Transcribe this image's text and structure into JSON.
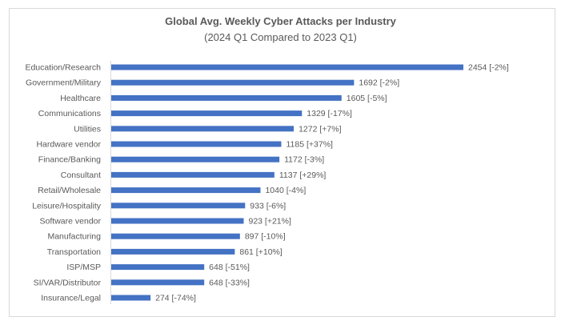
{
  "chart_data": {
    "type": "bar",
    "orientation": "horizontal",
    "title": "Global Avg. Weekly Cyber Attacks per Industry",
    "subtitle": "(2024 Q1 Compared to 2023 Q1)",
    "xlabel": "",
    "ylabel": "",
    "grid": false,
    "bar_color": "#4472c4",
    "xlim": [
      0,
      2454
    ],
    "categories": [
      "Education/Research",
      "Government/Military",
      "Healthcare",
      "Communications",
      "Utilities",
      "Hardware vendor",
      "Finance/Banking",
      "Consultant",
      "Retail/Wholesale",
      "Leisure/Hospitality",
      "Software vendor",
      "Manufacturing",
      "Transportation",
      "ISP/MSP",
      "SI/VAR/Distributor",
      "Insurance/Legal"
    ],
    "values": [
      2454,
      1692,
      1605,
      1329,
      1272,
      1185,
      1172,
      1137,
      1040,
      933,
      923,
      897,
      861,
      648,
      648,
      274
    ],
    "data_labels": [
      "2454 [-2%]",
      "1692 [-2%]",
      "1605 [-5%]",
      "1329 [-17%]",
      "1272 [+7%]",
      "1185 [+37%]",
      "1172 [-3%]",
      "1137 [+29%]",
      "1040 [-4%]",
      "933 [-6%]",
      "923 [+21%]",
      "897 [-10%]",
      "861 [+10%]",
      "648 [-51%]",
      "648 [-33%]",
      "274 [-74%]"
    ]
  }
}
